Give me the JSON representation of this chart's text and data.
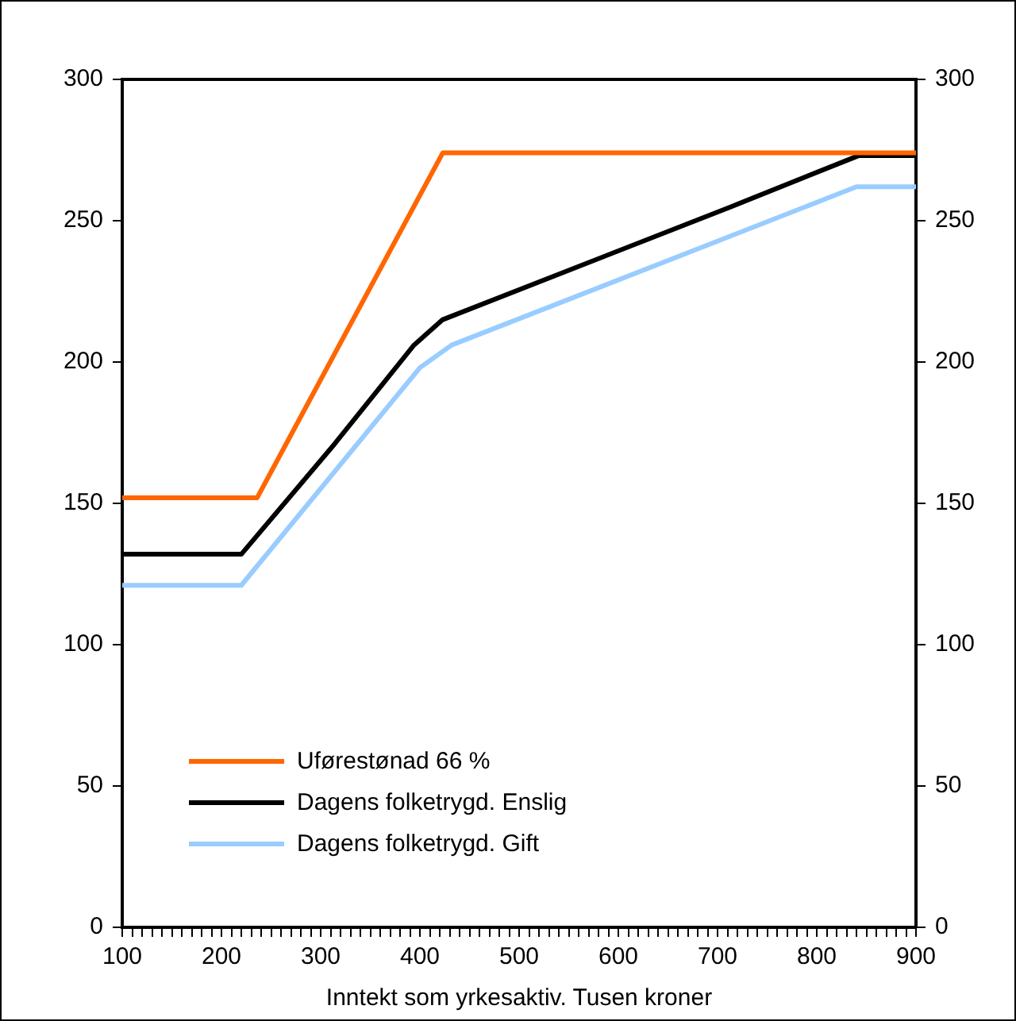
{
  "chart_data": {
    "type": "line",
    "xlabel": "Inntekt som yrkesaktiv. Tusen kroner",
    "xlim": [
      100,
      900
    ],
    "ylim": [
      0,
      300
    ],
    "y2lim": [
      0,
      300
    ],
    "xticks": [
      100,
      {
        "value": 110,
        "label": null
      },
      {
        "value": 120,
        "label": null
      },
      {
        "value": 130,
        "label": null
      },
      {
        "value": 140,
        "label": null
      },
      {
        "value": 150,
        "label": null
      },
      {
        "value": 160,
        "label": null
      },
      {
        "value": 170,
        "label": null
      },
      {
        "value": 180,
        "label": null
      },
      {
        "value": 190,
        "label": null
      },
      200,
      {
        "value": 210,
        "label": null
      },
      {
        "value": 220,
        "label": null
      },
      {
        "value": 230,
        "label": null
      },
      {
        "value": 240,
        "label": null
      },
      {
        "value": 250,
        "label": null
      },
      {
        "value": 260,
        "label": null
      },
      {
        "value": 270,
        "label": null
      },
      {
        "value": 280,
        "label": null
      },
      {
        "value": 290,
        "label": null
      },
      300,
      {
        "value": 310,
        "label": null
      },
      {
        "value": 320,
        "label": null
      },
      {
        "value": 330,
        "label": null
      },
      {
        "value": 340,
        "label": null
      },
      {
        "value": 350,
        "label": null
      },
      {
        "value": 360,
        "label": null
      },
      {
        "value": 370,
        "label": null
      },
      {
        "value": 380,
        "label": null
      },
      {
        "value": 390,
        "label": null
      },
      400,
      {
        "value": 410,
        "label": null
      },
      {
        "value": 420,
        "label": null
      },
      {
        "value": 430,
        "label": null
      },
      {
        "value": 440,
        "label": null
      },
      {
        "value": 450,
        "label": null
      },
      {
        "value": 460,
        "label": null
      },
      {
        "value": 470,
        "label": null
      },
      {
        "value": 480,
        "label": null
      },
      {
        "value": 490,
        "label": null
      },
      500,
      {
        "value": 510,
        "label": null
      },
      {
        "value": 520,
        "label": null
      },
      {
        "value": 530,
        "label": null
      },
      {
        "value": 540,
        "label": null
      },
      {
        "value": 550,
        "label": null
      },
      {
        "value": 560,
        "label": null
      },
      {
        "value": 570,
        "label": null
      },
      {
        "value": 580,
        "label": null
      },
      {
        "value": 590,
        "label": null
      },
      600,
      {
        "value": 610,
        "label": null
      },
      {
        "value": 620,
        "label": null
      },
      {
        "value": 630,
        "label": null
      },
      {
        "value": 640,
        "label": null
      },
      {
        "value": 650,
        "label": null
      },
      {
        "value": 660,
        "label": null
      },
      {
        "value": 670,
        "label": null
      },
      {
        "value": 680,
        "label": null
      },
      {
        "value": 690,
        "label": null
      },
      700,
      {
        "value": 710,
        "label": null
      },
      {
        "value": 720,
        "label": null
      },
      {
        "value": 730,
        "label": null
      },
      {
        "value": 740,
        "label": null
      },
      {
        "value": 750,
        "label": null
      },
      {
        "value": 760,
        "label": null
      },
      {
        "value": 770,
        "label": null
      },
      {
        "value": 780,
        "label": null
      },
      {
        "value": 790,
        "label": null
      },
      800,
      {
        "value": 810,
        "label": null
      },
      {
        "value": 820,
        "label": null
      },
      {
        "value": 830,
        "label": null
      },
      {
        "value": 840,
        "label": null
      },
      {
        "value": 850,
        "label": null
      },
      {
        "value": 860,
        "label": null
      },
      {
        "value": 870,
        "label": null
      },
      {
        "value": 880,
        "label": null
      },
      {
        "value": 890,
        "label": null
      },
      900
    ],
    "yticks": [
      0,
      50,
      100,
      150,
      200,
      250,
      300
    ],
    "y2ticks": [
      0,
      50,
      100,
      150,
      200,
      250,
      300
    ],
    "grid": false,
    "legend": "bottom left",
    "marker": "none",
    "line_style": "solid",
    "series": [
      {
        "name": "Uførestønad 66 %",
        "color": "#ff6600",
        "x": [
          100,
          236,
          423,
          900
        ],
        "values": [
          152,
          152,
          274,
          274
        ]
      },
      {
        "name": "Dagens folketrygd. Enslig",
        "color": "#000000",
        "x": [
          100,
          220,
          314,
          394,
          423,
          714,
          842,
          900
        ],
        "values": [
          132,
          132,
          171,
          206,
          215,
          255,
          273,
          273
        ]
      },
      {
        "name": "Dagens folketrygd. Gift",
        "color": "#99ccff",
        "x": [
          100,
          220,
          400,
          432,
          840,
          900
        ],
        "values": [
          121,
          121,
          198,
          206,
          262,
          262
        ]
      }
    ]
  }
}
